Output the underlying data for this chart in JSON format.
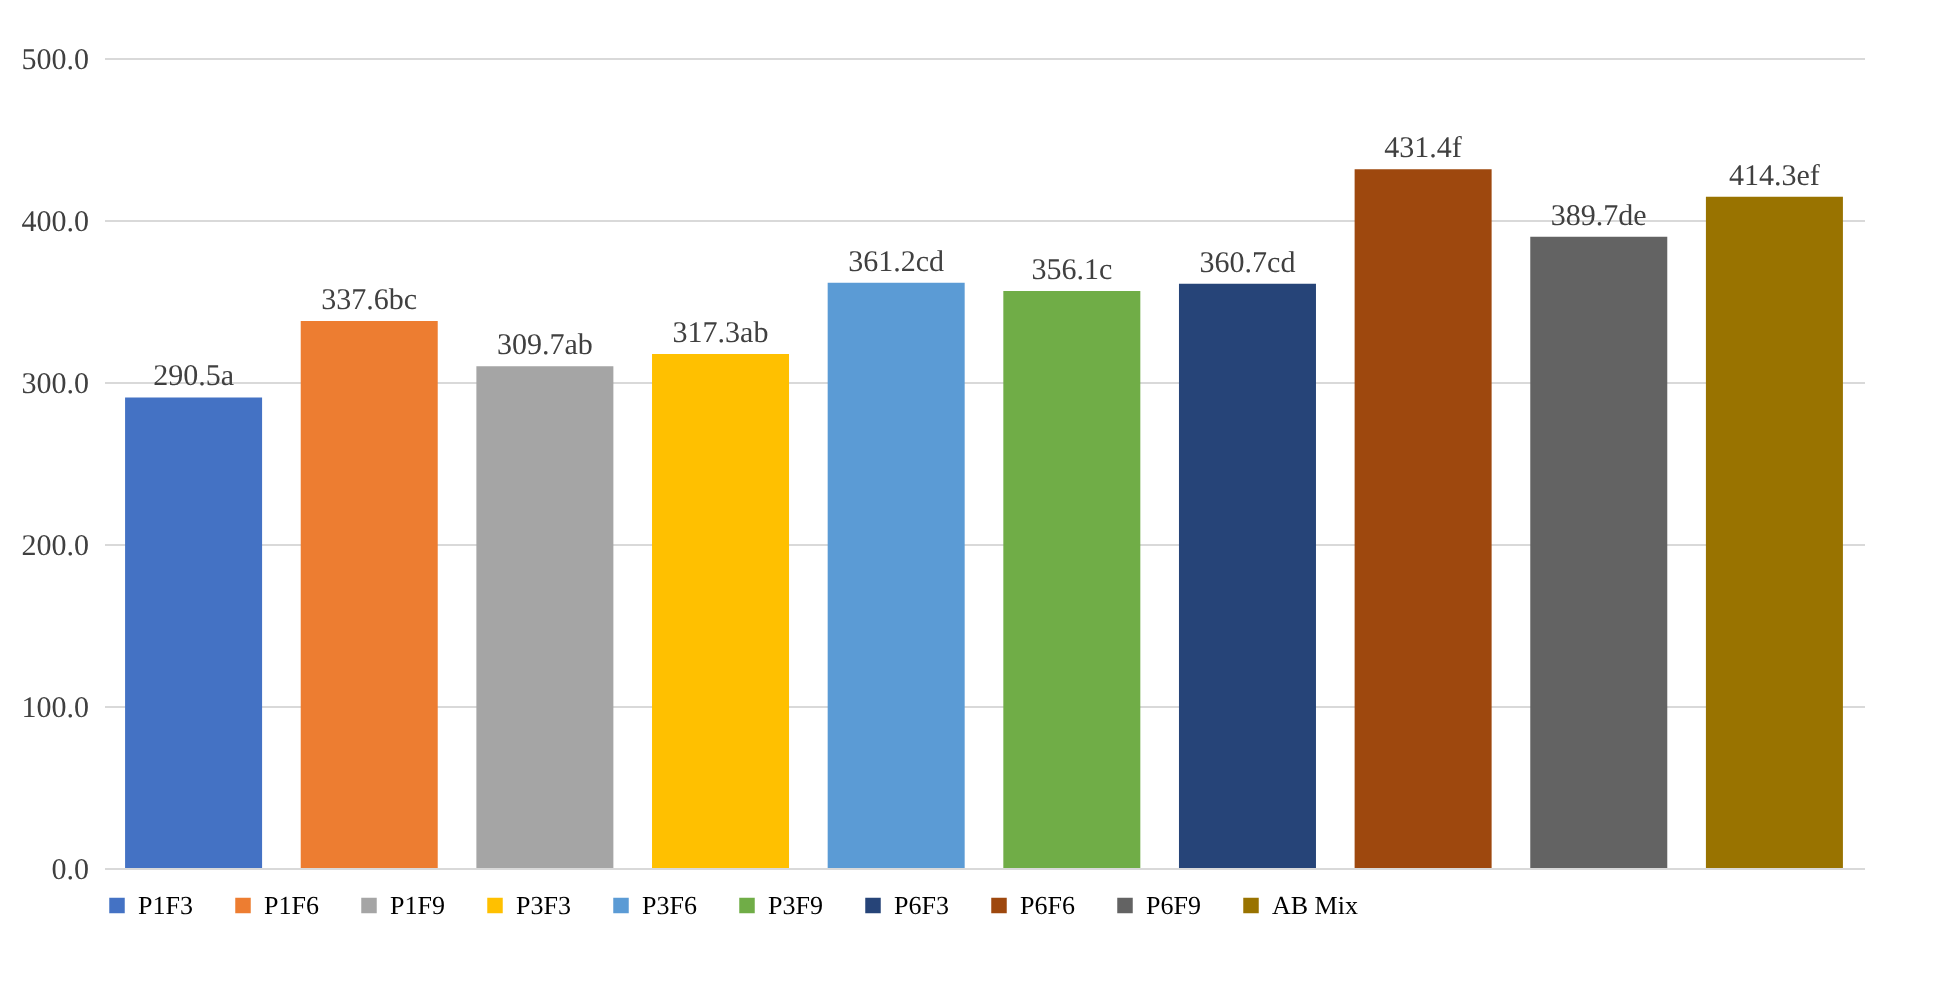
{
  "chart_data": {
    "type": "bar",
    "stacked": true,
    "categories": [
      null,
      null,
      null,
      null,
      null,
      null,
      null,
      null,
      null,
      null
    ],
    "series": [
      {
        "name": "P1F3",
        "color": "#4472c4",
        "values": [
          290.5,
          null,
          null,
          null,
          null,
          null,
          null,
          null,
          null,
          null
        ],
        "value_labels": [
          "290.5a",
          null,
          null,
          null,
          null,
          null,
          null,
          null,
          null,
          null
        ]
      },
      {
        "name": "P1F6",
        "color": "#ed7d31",
        "values": [
          null,
          337.6,
          null,
          null,
          null,
          null,
          null,
          null,
          null,
          null
        ],
        "value_labels": [
          null,
          "337.6bc",
          null,
          null,
          null,
          null,
          null,
          null,
          null,
          null
        ]
      },
      {
        "name": "P1F9",
        "color": "#a5a5a5",
        "values": [
          null,
          null,
          309.7,
          null,
          null,
          null,
          null,
          null,
          null,
          null
        ],
        "value_labels": [
          null,
          null,
          "309.7ab",
          null,
          null,
          null,
          null,
          null,
          null,
          null
        ]
      },
      {
        "name": "P3F3",
        "color": "#ffc000",
        "values": [
          null,
          null,
          null,
          317.3,
          null,
          null,
          null,
          null,
          null,
          null
        ],
        "value_labels": [
          null,
          null,
          null,
          "317.3ab",
          null,
          null,
          null,
          null,
          null,
          null
        ]
      },
      {
        "name": "P3F6",
        "color": "#5b9bd5",
        "values": [
          null,
          null,
          null,
          null,
          361.2,
          null,
          null,
          null,
          null,
          null
        ],
        "value_labels": [
          null,
          null,
          null,
          null,
          "361.2cd",
          null,
          null,
          null,
          null,
          null
        ]
      },
      {
        "name": "P3F9",
        "color": "#70ad47",
        "values": [
          null,
          null,
          null,
          null,
          null,
          356.1,
          null,
          null,
          null,
          null
        ],
        "value_labels": [
          null,
          null,
          null,
          null,
          null,
          "356.1c",
          null,
          null,
          null,
          null
        ]
      },
      {
        "name": "P6F3",
        "color": "#264478",
        "values": [
          null,
          null,
          null,
          null,
          null,
          null,
          360.7,
          null,
          null,
          null
        ],
        "value_labels": [
          null,
          null,
          null,
          null,
          null,
          null,
          "360.7cd",
          null,
          null,
          null
        ]
      },
      {
        "name": "P6F6",
        "color": "#9e480e",
        "values": [
          null,
          null,
          null,
          null,
          null,
          null,
          null,
          431.4,
          null,
          null
        ],
        "value_labels": [
          null,
          null,
          null,
          null,
          null,
          null,
          null,
          "431.4f",
          null,
          null
        ]
      },
      {
        "name": "P6F9",
        "color": "#636363",
        "values": [
          null,
          null,
          null,
          null,
          null,
          null,
          null,
          null,
          389.7,
          null
        ],
        "value_labels": [
          null,
          null,
          null,
          null,
          null,
          null,
          null,
          null,
          "389.7de",
          null
        ]
      },
      {
        "name": "AB Mix",
        "color": "#997300",
        "values": [
          null,
          null,
          null,
          null,
          null,
          null,
          null,
          null,
          null,
          414.3
        ],
        "value_labels": [
          null,
          null,
          null,
          null,
          null,
          null,
          null,
          null,
          null,
          "414.3ef"
        ]
      }
    ],
    "ylim": [
      0,
      500
    ],
    "yticks": [
      {
        "value": 0,
        "label": "0.0"
      },
      {
        "value": 100,
        "label": "100.0"
      },
      {
        "value": 200,
        "label": "200.0"
      },
      {
        "value": 300,
        "label": "300.0"
      },
      {
        "value": 400,
        "label": "400.0"
      },
      {
        "value": 500,
        "label": "500.0"
      }
    ],
    "grid": "y",
    "legend": "bottom",
    "tick_labels": "y"
  }
}
